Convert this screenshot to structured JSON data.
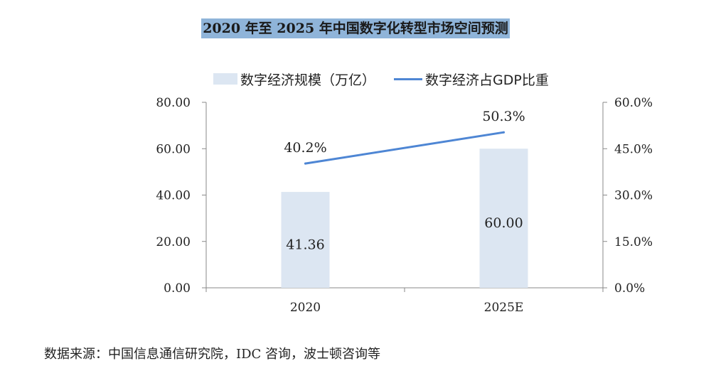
{
  "chart_data": {
    "type": "bar+line",
    "title": "2020 年至 2025 年中国数字化转型市场空间预测",
    "categories": [
      "2020",
      "2025E"
    ],
    "series": [
      {
        "name": "数字经济规模（万亿）",
        "type": "bar",
        "axis": "left",
        "values": [
          41.36,
          60.0
        ],
        "labels": [
          "41.36",
          "60.00"
        ]
      },
      {
        "name": "数字经济占GDP比重",
        "type": "line",
        "axis": "right",
        "values": [
          40.2,
          50.3
        ],
        "labels": [
          "40.2%",
          "50.3%"
        ]
      }
    ],
    "left_axis": {
      "ylim": [
        0,
        80
      ],
      "ticks": [
        "0.00",
        "20.00",
        "40.00",
        "60.00",
        "80.00"
      ]
    },
    "right_axis": {
      "ylim": [
        0,
        60
      ],
      "ticks": [
        "0.0%",
        "15.0%",
        "30.0%",
        "45.0%",
        "60.0%"
      ]
    },
    "legend_position": "top",
    "colors": {
      "bar": "#dce6f2",
      "line": "#4e86d4",
      "title_bg": "#8fb4d9"
    }
  },
  "source": "数据来源：中国信息通信研究院，IDC 咨询，波士顿咨询等"
}
